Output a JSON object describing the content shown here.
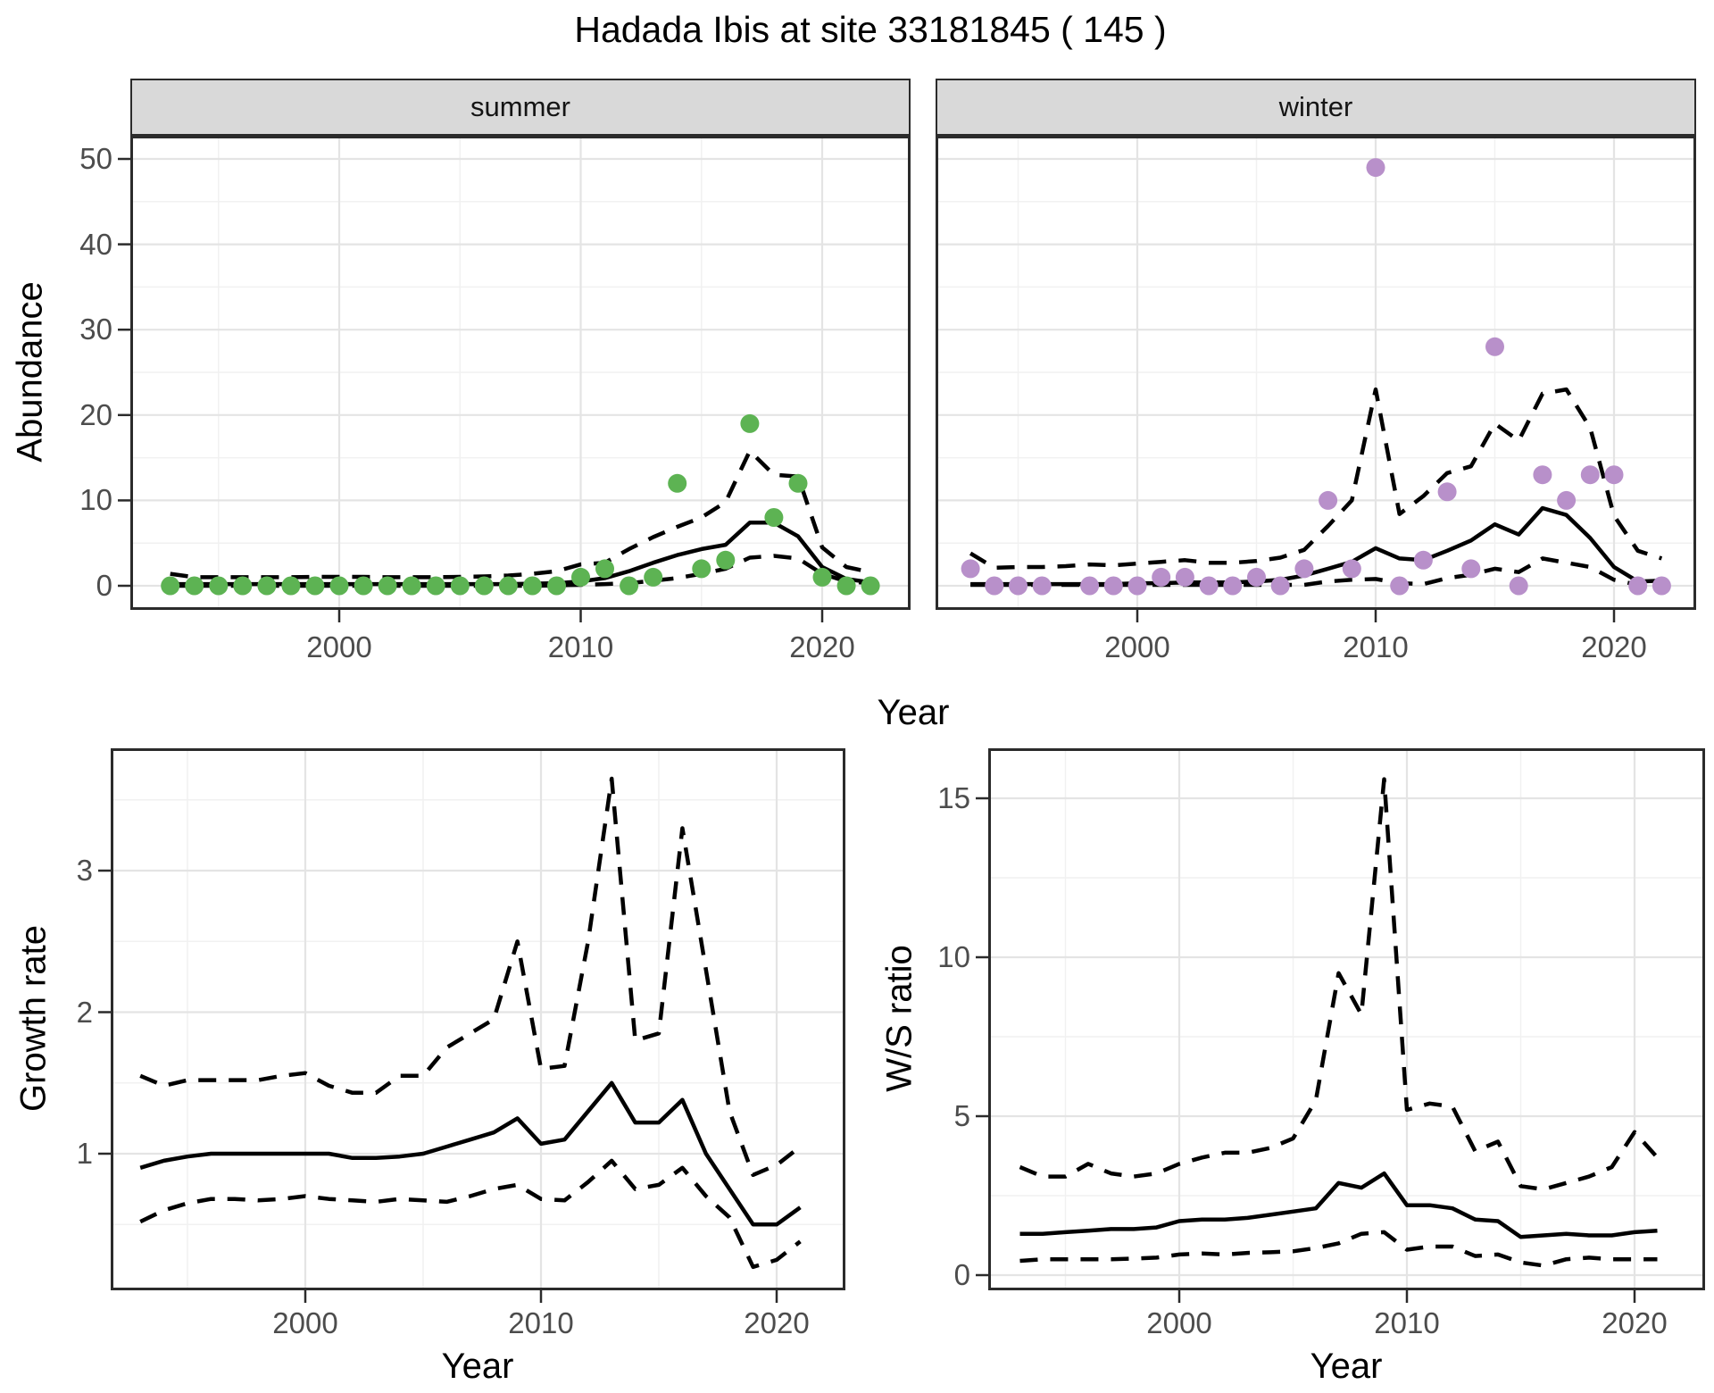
{
  "title": "Hadada Ibis at site 33181845 ( 145 )",
  "colors": {
    "summer_points": "#5db353",
    "winter_points": "#b890ca",
    "line": "#000000",
    "strip_background": "#d9d9d9",
    "panel_border": "#2b2b2b",
    "grid_major": "#e4e4e4",
    "grid_minor": "#f1f1f1",
    "tick_text": "#4c4c4c"
  },
  "top_row": {
    "facets": [
      {
        "label": "summer"
      },
      {
        "label": "winter"
      }
    ],
    "y_axis_label": "Abundance",
    "x_axis_label": "Year"
  },
  "bottom_row": {
    "left_y_axis_label": "Growth rate",
    "right_y_axis_label": "W/S ratio",
    "x_axis_label": "Year"
  },
  "chart_data": [
    {
      "id": "abundance_summer",
      "type": "scatter",
      "title": "summer",
      "xlabel": "Year",
      "ylabel": "Abundance",
      "legend_position": "none",
      "grid": true,
      "xlim": [
        1991.5,
        2023.5
      ],
      "ylim": [
        -2.8,
        52.7
      ],
      "xticks": [
        2000,
        2010,
        2020
      ],
      "xminor": [
        1995,
        2005,
        2015
      ],
      "yticks": [
        0,
        10,
        20,
        30,
        40,
        50
      ],
      "yminor": [
        5,
        15,
        25,
        35,
        45
      ],
      "x": [
        1993,
        1994,
        1995,
        1996,
        1997,
        1998,
        1999,
        2000,
        2001,
        2002,
        2003,
        2004,
        2005,
        2006,
        2007,
        2008,
        2009,
        2010,
        2011,
        2012,
        2013,
        2014,
        2015,
        2016,
        2017,
        2018,
        2019,
        2020,
        2021,
        2022
      ],
      "series": [
        {
          "name": "observed_counts",
          "style": "points",
          "color": "#5db353",
          "values": [
            0,
            0,
            0,
            0,
            0,
            0,
            0,
            0,
            0,
            0,
            0,
            0,
            0,
            0,
            0,
            0,
            0,
            1,
            2,
            0,
            1,
            12,
            2,
            3,
            19,
            8,
            12,
            1,
            0,
            0
          ]
        },
        {
          "name": "model_fit",
          "style": "solid",
          "color": "#000000",
          "values": [
            0.2,
            0.2,
            0.2,
            0.2,
            0.2,
            0.2,
            0.2,
            0.2,
            0.2,
            0.2,
            0.2,
            0.2,
            0.2,
            0.2,
            0.2,
            0.25,
            0.3,
            0.5,
            0.9,
            1.7,
            2.7,
            3.6,
            4.3,
            4.8,
            7.4,
            7.4,
            5.8,
            2.2,
            0.8,
            0.4
          ]
        },
        {
          "name": "upper_ci",
          "style": "dashed",
          "color": "#000000",
          "values": [
            1.4,
            1.0,
            1.0,
            1.0,
            1.0,
            1.0,
            1.05,
            1.05,
            1.05,
            1.0,
            1.0,
            1.0,
            1.05,
            1.1,
            1.2,
            1.4,
            1.7,
            2.5,
            2.7,
            4.3,
            5.7,
            6.9,
            8.0,
            9.8,
            15.8,
            13.0,
            12.8,
            4.5,
            2.2,
            1.6
          ]
        },
        {
          "name": "lower_ci",
          "style": "dashed",
          "color": "#000000",
          "values": [
            0,
            0,
            0,
            0,
            0,
            0,
            0,
            0,
            0,
            0,
            0,
            0,
            0,
            0,
            0,
            0,
            0.05,
            0.1,
            0.2,
            0.3,
            0.6,
            0.9,
            1.4,
            2.0,
            3.3,
            3.5,
            3.2,
            1.4,
            0.5,
            0.3
          ]
        }
      ]
    },
    {
      "id": "abundance_winter",
      "type": "scatter",
      "title": "winter",
      "xlabel": "Year",
      "ylabel": "Abundance",
      "legend_position": "none",
      "grid": true,
      "xlim": [
        1991.5,
        2023.5
      ],
      "ylim": [
        -2.8,
        52.7
      ],
      "xticks": [
        2000,
        2010,
        2020
      ],
      "xminor": [
        1995,
        2005,
        2015
      ],
      "yticks": [
        0,
        10,
        20,
        30,
        40,
        50
      ],
      "yminor": [
        5,
        15,
        25,
        35,
        45
      ],
      "x": [
        1993,
        1994,
        1995,
        1996,
        1997,
        1998,
        1999,
        2000,
        2001,
        2002,
        2003,
        2004,
        2005,
        2006,
        2007,
        2008,
        2009,
        2010,
        2011,
        2012,
        2013,
        2014,
        2015,
        2016,
        2017,
        2018,
        2019,
        2020,
        2021,
        2022
      ],
      "series": [
        {
          "name": "observed_counts",
          "style": "points",
          "color": "#b890ca",
          "values": [
            2,
            0,
            0,
            0,
            null,
            0,
            0,
            0,
            1,
            1,
            0,
            0,
            1,
            0,
            2,
            10,
            2,
            49,
            0,
            3,
            11,
            2,
            28,
            0,
            13,
            10,
            13,
            13,
            0,
            0
          ]
        },
        {
          "name": "model_fit",
          "style": "solid",
          "color": "#000000",
          "values": [
            0.2,
            0.2,
            0.2,
            0.2,
            0.2,
            0.2,
            0.2,
            0.3,
            0.3,
            0.4,
            0.4,
            0.4,
            0.5,
            0.7,
            1.2,
            2.0,
            2.8,
            4.4,
            3.2,
            3.0,
            4.1,
            5.3,
            7.2,
            6.0,
            9.1,
            8.3,
            5.6,
            2.2,
            0.5,
            0.6
          ]
        },
        {
          "name": "upper_ci",
          "style": "dashed",
          "color": "#000000",
          "values": [
            3.8,
            2.1,
            2.2,
            2.2,
            2.3,
            2.5,
            2.4,
            2.6,
            2.8,
            3.0,
            2.7,
            2.7,
            2.9,
            3.3,
            4.2,
            7.0,
            10.0,
            23.0,
            8.4,
            10.5,
            13.2,
            14.0,
            19.0,
            17.0,
            22.5,
            23.0,
            18.5,
            8.2,
            4.1,
            3.2
          ]
        },
        {
          "name": "lower_ci",
          "style": "dashed",
          "color": "#000000",
          "values": [
            0.1,
            0.1,
            0.1,
            0.1,
            0.1,
            0.1,
            0.1,
            0.1,
            0.1,
            0.1,
            0.1,
            0.1,
            0.1,
            0.1,
            0.1,
            0.5,
            0.7,
            0.8,
            0.3,
            0.2,
            0.9,
            1.3,
            2.0,
            1.6,
            3.2,
            2.7,
            2.2,
            0.7,
            0.1,
            0.1
          ]
        }
      ]
    },
    {
      "id": "growth_rate",
      "type": "line",
      "title": "",
      "xlabel": "Year",
      "ylabel": "Growth rate",
      "legend_position": "none",
      "grid": true,
      "xlim": [
        1991.6,
        2022.4
      ],
      "ylim": [
        0.03,
        3.88
      ],
      "xticks": [
        2000,
        2010,
        2020
      ],
      "xminor": [
        1995,
        2005,
        2015
      ],
      "yticks": [
        1,
        2,
        3
      ],
      "yminor": [
        0.5,
        1.5,
        2.5,
        3.5
      ],
      "x": [
        1993,
        1994,
        1995,
        1996,
        1997,
        1998,
        1999,
        2000,
        2001,
        2002,
        2003,
        2004,
        2005,
        2006,
        2007,
        2008,
        2009,
        2010,
        2011,
        2012,
        2013,
        2014,
        2015,
        2016,
        2017,
        2018,
        2019,
        2020,
        2021
      ],
      "series": [
        {
          "name": "growth_rate_fit",
          "style": "solid",
          "color": "#000000",
          "values": [
            0.9,
            0.95,
            0.98,
            1.0,
            1.0,
            1.0,
            1.0,
            1.0,
            1.0,
            0.97,
            0.97,
            0.98,
            1.0,
            1.05,
            1.1,
            1.15,
            1.25,
            1.07,
            1.1,
            1.3,
            1.5,
            1.22,
            1.22,
            1.38,
            1.0,
            0.75,
            0.5,
            0.5,
            0.62
          ]
        },
        {
          "name": "upper_ci",
          "style": "dashed",
          "color": "#000000",
          "values": [
            1.55,
            1.48,
            1.52,
            1.52,
            1.52,
            1.52,
            1.55,
            1.57,
            1.48,
            1.43,
            1.43,
            1.55,
            1.55,
            1.75,
            1.85,
            1.95,
            2.5,
            1.6,
            1.62,
            2.5,
            3.65,
            1.8,
            1.85,
            3.3,
            2.3,
            1.3,
            0.85,
            0.92,
            1.05
          ]
        },
        {
          "name": "lower_ci",
          "style": "dashed",
          "color": "#000000",
          "values": [
            0.52,
            0.6,
            0.65,
            0.68,
            0.68,
            0.67,
            0.68,
            0.7,
            0.68,
            0.67,
            0.66,
            0.68,
            0.67,
            0.66,
            0.7,
            0.75,
            0.78,
            0.68,
            0.67,
            0.8,
            0.95,
            0.75,
            0.78,
            0.9,
            0.7,
            0.55,
            0.2,
            0.25,
            0.38
          ]
        }
      ]
    },
    {
      "id": "winter_summer_ratio",
      "type": "line",
      "title": "",
      "xlabel": "Year",
      "ylabel": "W/S ratio",
      "legend_position": "none",
      "grid": true,
      "xlim": [
        1991.6,
        2022.4
      ],
      "ylim": [
        -0.48,
        16.6
      ],
      "xticks": [
        2000,
        2010,
        2020
      ],
      "xminor": [
        1995,
        2005,
        2015
      ],
      "yticks": [
        0,
        5,
        10,
        15
      ],
      "yminor": [
        2.5,
        7.5,
        12.5
      ],
      "x": [
        1993,
        1994,
        1995,
        1996,
        1997,
        1998,
        1999,
        2000,
        2001,
        2002,
        2003,
        2004,
        2005,
        2006,
        2007,
        2008,
        2009,
        2010,
        2011,
        2012,
        2013,
        2014,
        2015,
        2016,
        2017,
        2018,
        2019,
        2020,
        2021
      ],
      "series": [
        {
          "name": "ws_ratio_fit",
          "style": "solid",
          "color": "#000000",
          "values": [
            1.3,
            1.3,
            1.35,
            1.4,
            1.45,
            1.45,
            1.5,
            1.7,
            1.75,
            1.75,
            1.8,
            1.9,
            2.0,
            2.1,
            2.9,
            2.75,
            3.2,
            2.2,
            2.2,
            2.1,
            1.75,
            1.7,
            1.2,
            1.25,
            1.3,
            1.25,
            1.25,
            1.35,
            1.4
          ]
        },
        {
          "name": "upper_ci",
          "style": "dashed",
          "color": "#000000",
          "values": [
            3.4,
            3.1,
            3.1,
            3.5,
            3.2,
            3.1,
            3.2,
            3.5,
            3.7,
            3.85,
            3.85,
            4.0,
            4.3,
            5.5,
            9.5,
            8.2,
            15.6,
            5.2,
            5.4,
            5.3,
            3.9,
            4.2,
            2.8,
            2.7,
            2.9,
            3.1,
            3.4,
            4.5,
            3.7
          ]
        },
        {
          "name": "lower_ci",
          "style": "dashed",
          "color": "#000000",
          "values": [
            0.45,
            0.5,
            0.5,
            0.5,
            0.5,
            0.52,
            0.55,
            0.65,
            0.68,
            0.65,
            0.7,
            0.72,
            0.75,
            0.85,
            1.0,
            1.3,
            1.35,
            0.8,
            0.9,
            0.9,
            0.6,
            0.65,
            0.4,
            0.3,
            0.5,
            0.55,
            0.5,
            0.5,
            0.5
          ]
        }
      ]
    }
  ]
}
